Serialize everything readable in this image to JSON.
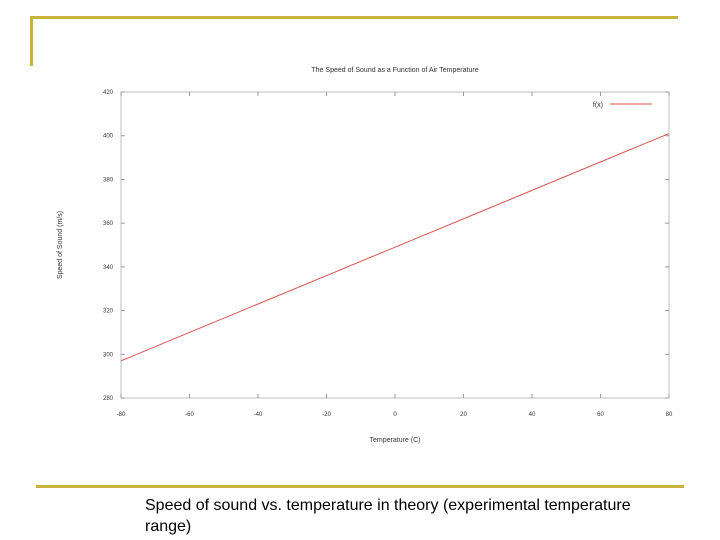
{
  "caption": "Speed of sound vs. temperature in theory (experimental temperature range)",
  "chart_data": {
    "type": "line",
    "title": "The Speed of Sound as a Function of Air Temperature",
    "xlabel": "Temperature (C)",
    "ylabel": "Speed of Sound (m/s)",
    "xlim": [
      -80,
      80
    ],
    "ylim": [
      280,
      420
    ],
    "xticks": [
      -80,
      -60,
      -40,
      -20,
      0,
      20,
      40,
      60,
      80
    ],
    "yticks": [
      280,
      300,
      320,
      340,
      360,
      380,
      400,
      420
    ],
    "grid": false,
    "legend_position": "top-right",
    "series": [
      {
        "name": "f(x)",
        "color": "#d9534f",
        "x": [
          -80,
          80
        ],
        "y": [
          297,
          401
        ]
      }
    ]
  }
}
